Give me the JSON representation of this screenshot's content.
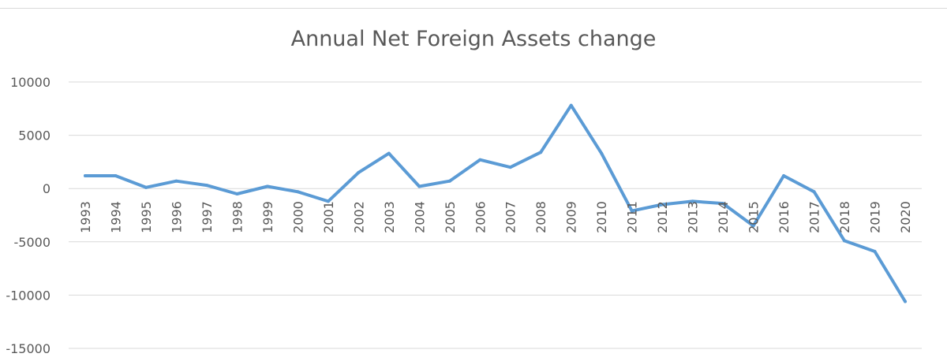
{
  "chart_data": {
    "type": "line",
    "title": "Annual Net Foreign Assets change",
    "xlabel": "",
    "ylabel": "",
    "ylim": [
      -15000,
      10000
    ],
    "yticks": [
      10000,
      5000,
      0,
      -5000,
      -10000,
      -15000
    ],
    "grid": true,
    "legend": "none",
    "line_color": "#5b9bd5",
    "x": [
      "1993",
      "1994",
      "1995",
      "1996",
      "1997",
      "1998",
      "1999",
      "2000",
      "2001",
      "2002",
      "2003",
      "2004",
      "2005",
      "2006",
      "2007",
      "2008",
      "2009",
      "2010",
      "2011",
      "2012",
      "2013",
      "2014",
      "2015",
      "2016",
      "2017",
      "2018",
      "2019",
      "2020"
    ],
    "series": [
      {
        "values": [
          1200,
          1200,
          100,
          700,
          300,
          -500,
          200,
          -300,
          -1200,
          1500,
          3300,
          200,
          700,
          2700,
          2000,
          3400,
          7800,
          3300,
          -2100,
          -1500,
          -1200,
          -1400,
          -3500,
          1200,
          -300,
          -4900,
          -5900,
          -10600
        ]
      }
    ]
  }
}
